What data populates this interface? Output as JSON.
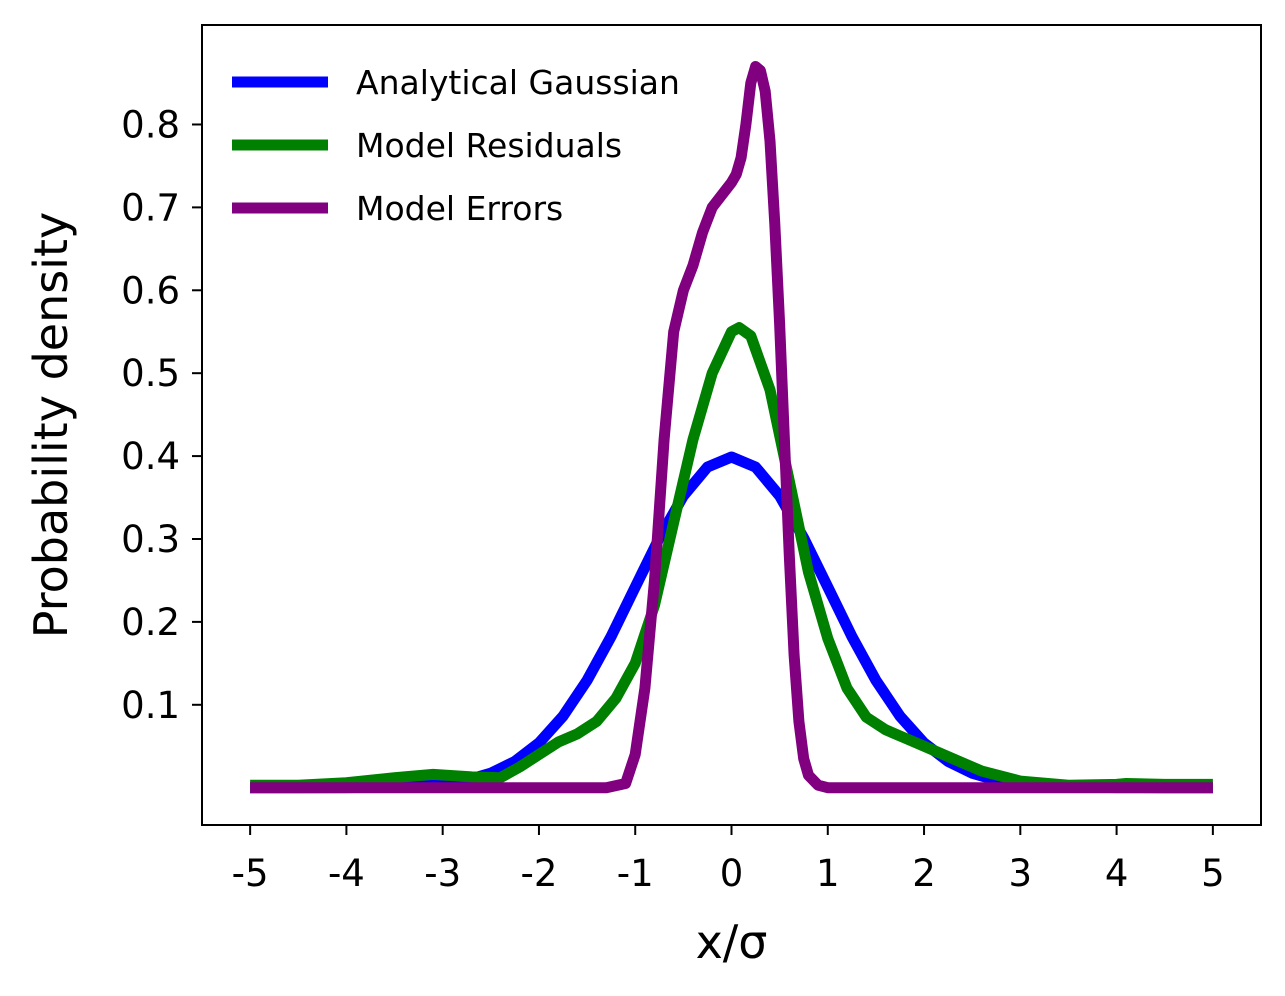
{
  "chart_data": {
    "type": "line",
    "xlabel": "x/σ",
    "ylabel": "Probability density",
    "xlim": [
      -5.5,
      5.5
    ],
    "ylim": [
      -0.045,
      0.92
    ],
    "x_ticks": [
      -5,
      -4,
      -3,
      -2,
      -1,
      0,
      1,
      2,
      3,
      4,
      5
    ],
    "x_tick_labels": [
      "-5",
      "-4",
      "-3",
      "-2",
      "-1",
      "0",
      "1",
      "2",
      "3",
      "4",
      "5"
    ],
    "y_ticks": [
      0.1,
      0.2,
      0.3,
      0.4,
      0.5,
      0.6,
      0.7,
      0.8
    ],
    "y_tick_labels": [
      "0.1",
      "0.2",
      "0.3",
      "0.4",
      "0.5",
      "0.6",
      "0.7",
      "0.8"
    ],
    "grid": false,
    "legend": "top-left",
    "series": [
      {
        "name": "Analytical Gaussian",
        "color": "#0000ff",
        "x": [
          -5.0,
          -4.5,
          -4.0,
          -3.5,
          -3.0,
          -2.75,
          -2.5,
          -2.25,
          -2.0,
          -1.75,
          -1.5,
          -1.25,
          -1.0,
          -0.75,
          -0.5,
          -0.25,
          0.0,
          0.25,
          0.5,
          0.75,
          1.0,
          1.25,
          1.5,
          1.75,
          2.0,
          2.25,
          2.5,
          2.75,
          3.0,
          3.5,
          4.0,
          4.5,
          5.0
        ],
        "y": [
          0.0,
          0.0,
          0.0001,
          0.0009,
          0.0044,
          0.0091,
          0.0175,
          0.0317,
          0.054,
          0.0863,
          0.1295,
          0.1826,
          0.242,
          0.3011,
          0.3521,
          0.3867,
          0.3989,
          0.3867,
          0.3521,
          0.3011,
          0.242,
          0.1826,
          0.1295,
          0.0863,
          0.054,
          0.0317,
          0.0175,
          0.0091,
          0.0044,
          0.0009,
          0.0001,
          0.0,
          0.0
        ]
      },
      {
        "name": "Model Residuals",
        "color": "#008000",
        "x": [
          -5.0,
          -4.5,
          -4.0,
          -3.5,
          -3.1,
          -2.7,
          -2.4,
          -2.2,
          -2.0,
          -1.8,
          -1.6,
          -1.4,
          -1.2,
          -1.0,
          -0.8,
          -0.6,
          -0.4,
          -0.2,
          0.0,
          0.08,
          0.2,
          0.4,
          0.6,
          0.8,
          1.0,
          1.2,
          1.4,
          1.6,
          1.8,
          2.0,
          2.3,
          2.6,
          3.0,
          3.5,
          4.0,
          4.1,
          4.5,
          5.0
        ],
        "y": [
          0.003,
          0.003,
          0.006,
          0.012,
          0.016,
          0.013,
          0.012,
          0.025,
          0.04,
          0.055,
          0.065,
          0.08,
          0.108,
          0.15,
          0.22,
          0.32,
          0.42,
          0.5,
          0.55,
          0.555,
          0.545,
          0.48,
          0.37,
          0.26,
          0.18,
          0.12,
          0.085,
          0.07,
          0.06,
          0.05,
          0.035,
          0.02,
          0.008,
          0.003,
          0.004,
          0.005,
          0.004,
          0.004
        ]
      },
      {
        "name": "Model Errors",
        "color": "#800080",
        "x": [
          -5.0,
          -3.0,
          -1.3,
          -1.1,
          -1.0,
          -0.9,
          -0.8,
          -0.7,
          -0.6,
          -0.5,
          -0.4,
          -0.3,
          -0.2,
          -0.1,
          0.0,
          0.05,
          0.1,
          0.15,
          0.2,
          0.25,
          0.3,
          0.35,
          0.4,
          0.45,
          0.5,
          0.55,
          0.6,
          0.65,
          0.7,
          0.75,
          0.8,
          0.9,
          1.0,
          1.1,
          1.3,
          3.0,
          5.0
        ],
        "y": [
          0.0,
          0.0,
          0.0,
          0.005,
          0.04,
          0.12,
          0.25,
          0.42,
          0.55,
          0.6,
          0.63,
          0.67,
          0.7,
          0.715,
          0.73,
          0.74,
          0.76,
          0.8,
          0.85,
          0.87,
          0.865,
          0.84,
          0.78,
          0.68,
          0.56,
          0.42,
          0.28,
          0.16,
          0.08,
          0.035,
          0.015,
          0.003,
          0.0,
          0.0,
          0.0,
          0.0,
          0.0
        ]
      }
    ]
  }
}
